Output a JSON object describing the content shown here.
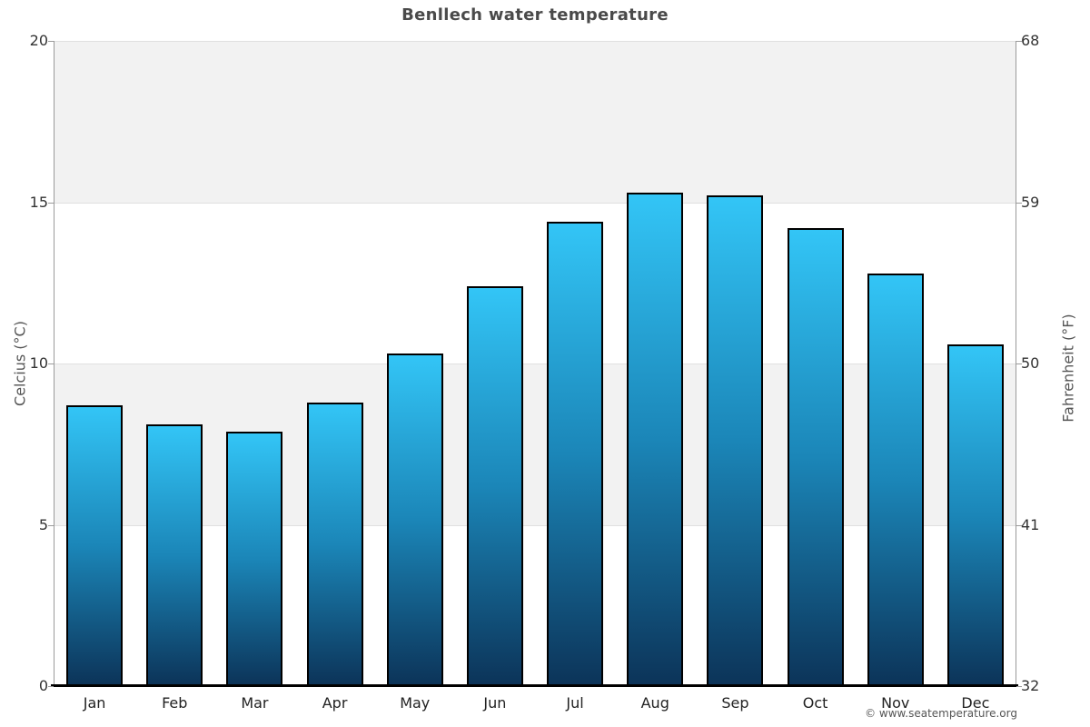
{
  "chart_data": {
    "type": "bar",
    "title": "Benllech water temperature",
    "categories": [
      "Jan",
      "Feb",
      "Mar",
      "Apr",
      "May",
      "Jun",
      "Jul",
      "Aug",
      "Sep",
      "Oct",
      "Nov",
      "Dec"
    ],
    "values": [
      8.7,
      8.1,
      7.9,
      8.8,
      10.3,
      12.4,
      14.4,
      15.3,
      15.2,
      14.2,
      12.8,
      10.6
    ],
    "ylabel": "Celcius (°C)",
    "y2label": "Fahrenheit (°F)",
    "yticks_celsius": [
      0,
      5,
      10,
      15,
      20
    ],
    "yticks_fahrenheit": [
      32,
      41,
      50,
      59,
      68
    ],
    "ylim": [
      0,
      20
    ],
    "legend": "none",
    "grid": "alternating horizontal bands",
    "colors": {
      "bar_gradient_top": "#33c5f6",
      "bar_gradient_mid": "#1b86b8",
      "bar_gradient_bottom": "#0c3459",
      "bar_border": "#000000",
      "band_gray": "#f2f2f2",
      "band_white": "#ffffff",
      "gridline": "#e0e0e0",
      "axis_line": "#9a9a9a",
      "baseline": "#000000",
      "title_color": "#4a4a4a"
    }
  },
  "footer": {
    "copyright": "© www.seatemperature.org"
  }
}
